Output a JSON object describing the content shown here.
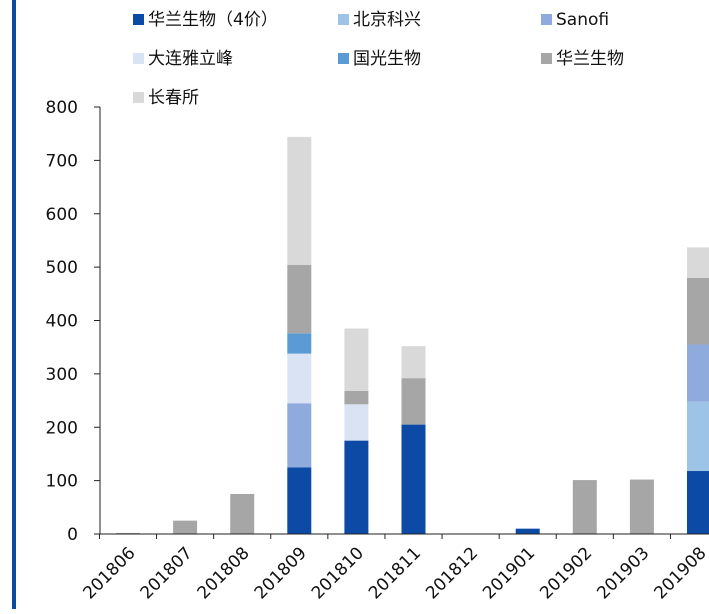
{
  "chart_data": {
    "type": "bar",
    "stacked": true,
    "categories": [
      "201806",
      "201807",
      "201808",
      "201809",
      "201810",
      "201811",
      "201812",
      "201901",
      "201902",
      "201903",
      "201908"
    ],
    "ylim": [
      0,
      800
    ],
    "yticks": [
      0,
      100,
      200,
      300,
      400,
      500,
      600,
      700,
      800
    ],
    "grid": false,
    "legend_position": "top",
    "series": [
      {
        "name": "华兰生物（4价）",
        "color": "#0d4aa6",
        "values": [
          0,
          0,
          0,
          125,
          175,
          205,
          0,
          10,
          0,
          0,
          118
        ]
      },
      {
        "name": "北京科兴",
        "color": "#9dc3e6",
        "values": [
          0,
          0,
          0,
          0,
          0,
          0,
          0,
          0,
          0,
          0,
          130
        ]
      },
      {
        "name": "Sanofi",
        "color": "#8faadc",
        "values": [
          0,
          0,
          0,
          120,
          0,
          0,
          0,
          0,
          0,
          0,
          107
        ]
      },
      {
        "name": "大连雅立峰",
        "color": "#dae3f3",
        "values": [
          0,
          0,
          0,
          93,
          68,
          0,
          0,
          0,
          0,
          0,
          0
        ]
      },
      {
        "name": "国光生物",
        "color": "#5b9bd5",
        "values": [
          0,
          0,
          0,
          38,
          0,
          0,
          0,
          0,
          0,
          0,
          0
        ]
      },
      {
        "name": "华兰生物",
        "color": "#a6a6a6",
        "values": [
          2,
          25,
          75,
          128,
          25,
          87,
          0,
          0,
          101,
          102,
          125
        ]
      },
      {
        "name": "长春所",
        "color": "#d9d9d9",
        "values": [
          0,
          0,
          0,
          240,
          117,
          60,
          0,
          0,
          0,
          0,
          57
        ]
      }
    ]
  }
}
